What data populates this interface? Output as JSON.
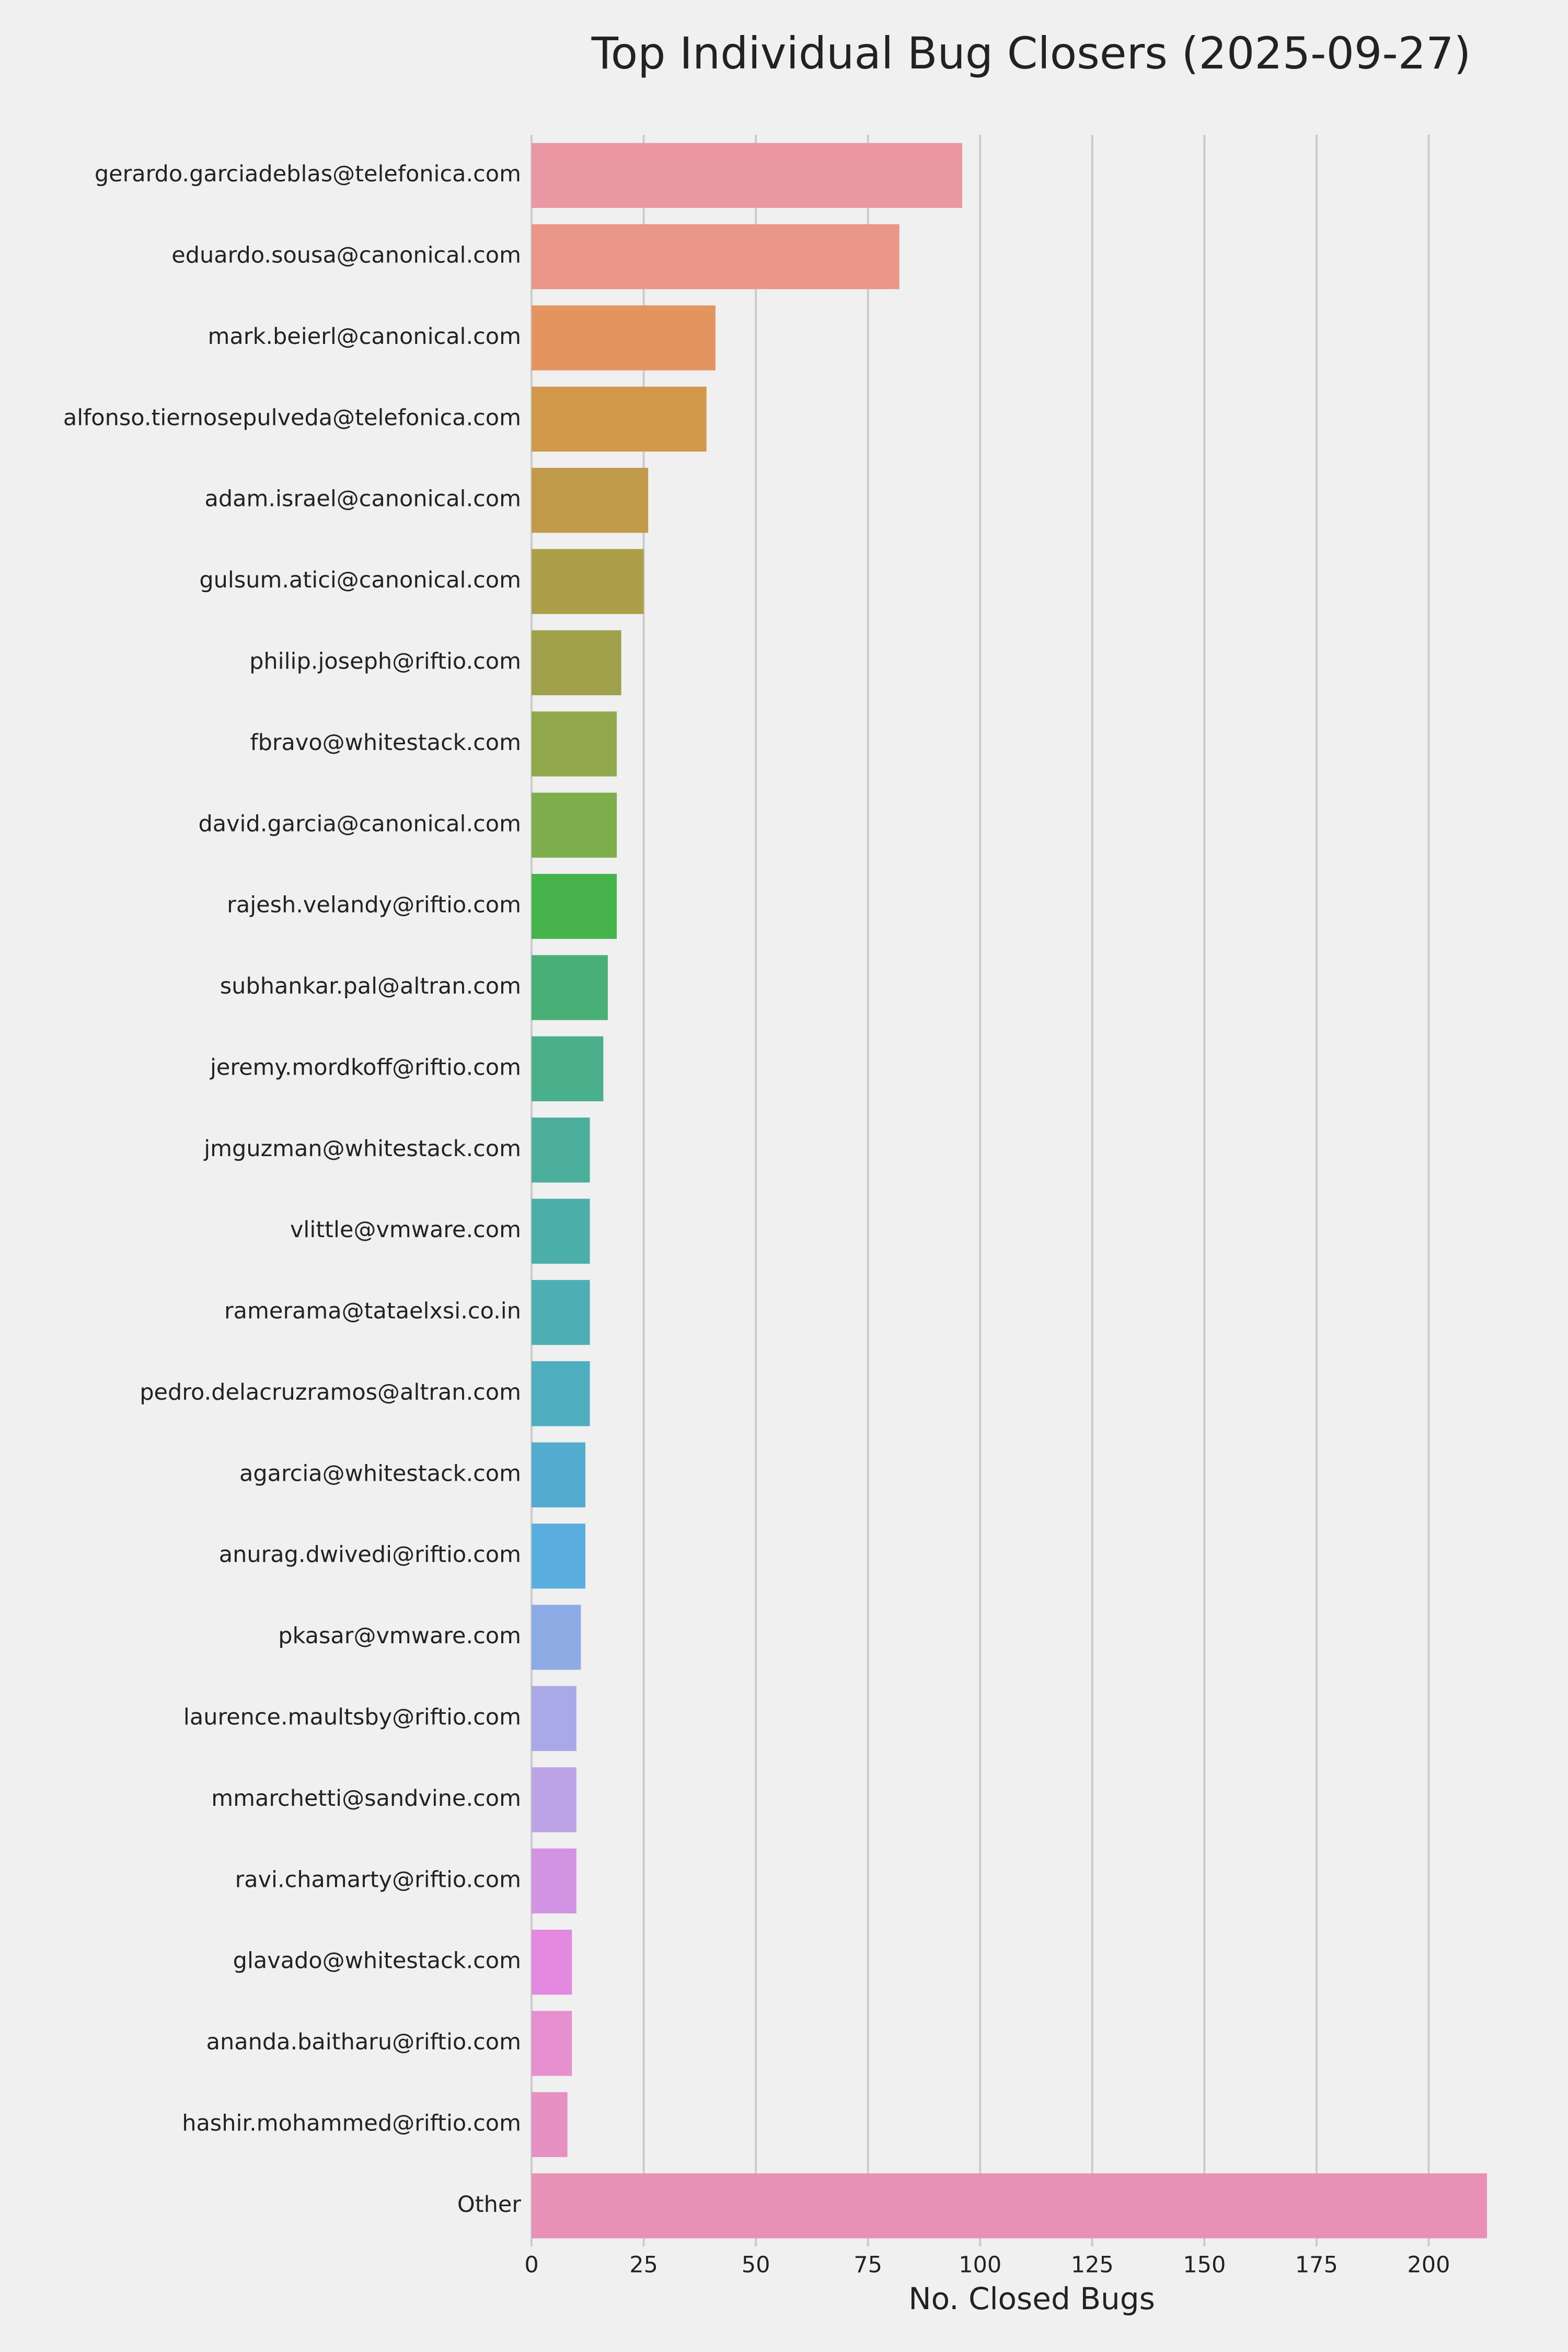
{
  "chart_data": {
    "type": "barh",
    "title": "Top Individual Bug Closers (2025-09-27)",
    "x_label": "No. Closed Bugs",
    "categories": [
      "gerardo.garciadeblas@telefonica.com",
      "eduardo.sousa@canonical.com",
      "mark.beierl@canonical.com",
      "alfonso.tiernosepulveda@telefonica.com",
      "adam.israel@canonical.com",
      "gulsum.atici@canonical.com",
      "philip.joseph@riftio.com",
      "fbravo@whitestack.com",
      "david.garcia@canonical.com",
      "rajesh.velandy@riftio.com",
      "subhankar.pal@altran.com",
      "jeremy.mordkoff@riftio.com",
      "jmguzman@whitestack.com",
      "vlittle@vmware.com",
      "ramerama@tataelxsi.co.in",
      "pedro.delacruzramos@altran.com",
      "agarcia@whitestack.com",
      "anurag.dwivedi@riftio.com",
      "pkasar@vmware.com",
      "laurence.maultsby@riftio.com",
      "mmarchetti@sandvine.com",
      "ravi.chamarty@riftio.com",
      "glavado@whitestack.com",
      "ananda.baitharu@riftio.com",
      "hashir.mohammed@riftio.com",
      "Other"
    ],
    "values": [
      96,
      82,
      41,
      39,
      26,
      25,
      20,
      19,
      19,
      19,
      17,
      16,
      13,
      13,
      13,
      13,
      12,
      12,
      11,
      10,
      10,
      10,
      9,
      9,
      8,
      213
    ],
    "colors": [
      "#eb97a3",
      "#ea9689",
      "#e4955f",
      "#d2984a",
      "#c19b4a",
      "#ad9e4a",
      "#a0a04a",
      "#91a84c",
      "#7ead4c",
      "#45b34a",
      "#48b077",
      "#4aaf8b",
      "#4baf9c",
      "#4caea9",
      "#4daeb4",
      "#4fadc0",
      "#52accf",
      "#59addf",
      "#8fabe6",
      "#aaa9e8",
      "#bda4e7",
      "#d293e3",
      "#e38ae0",
      "#e58fcf",
      "#e690c2",
      "#e890b5"
    ],
    "xlim": [
      0,
      213
    ],
    "xticks": [
      0,
      25,
      50,
      75,
      100,
      125,
      150,
      175,
      200
    ],
    "grid": true
  }
}
